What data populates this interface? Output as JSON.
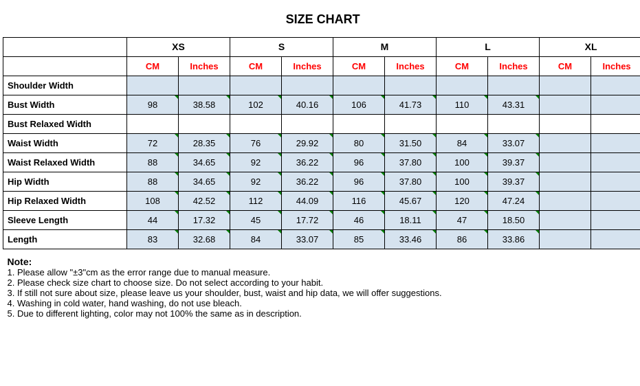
{
  "title": "SIZE CHART",
  "sizes": [
    "XS",
    "S",
    "M",
    "L",
    "XL"
  ],
  "units": {
    "cm": "CM",
    "inches": "Inches"
  },
  "measurements": [
    {
      "label": "Shoulder Width",
      "shaded": true,
      "values": [
        {
          "cm": "",
          "in": ""
        },
        {
          "cm": "",
          "in": ""
        },
        {
          "cm": "",
          "in": ""
        },
        {
          "cm": "",
          "in": ""
        },
        {
          "cm": "",
          "in": ""
        }
      ]
    },
    {
      "label": "Bust Width",
      "shaded": true,
      "values": [
        {
          "cm": "98",
          "in": "38.58"
        },
        {
          "cm": "102",
          "in": "40.16"
        },
        {
          "cm": "106",
          "in": "41.73"
        },
        {
          "cm": "110",
          "in": "43.31"
        },
        {
          "cm": "",
          "in": ""
        }
      ]
    },
    {
      "label": "Bust Relaxed Width",
      "shaded": false,
      "values": [
        {
          "cm": "",
          "in": ""
        },
        {
          "cm": "",
          "in": ""
        },
        {
          "cm": "",
          "in": ""
        },
        {
          "cm": "",
          "in": ""
        },
        {
          "cm": "",
          "in": ""
        }
      ]
    },
    {
      "label": "Waist Width",
      "shaded": true,
      "values": [
        {
          "cm": "72",
          "in": "28.35"
        },
        {
          "cm": "76",
          "in": "29.92"
        },
        {
          "cm": "80",
          "in": "31.50"
        },
        {
          "cm": "84",
          "in": "33.07"
        },
        {
          "cm": "",
          "in": ""
        }
      ]
    },
    {
      "label": "Waist Relaxed Width",
      "shaded": true,
      "values": [
        {
          "cm": "88",
          "in": "34.65"
        },
        {
          "cm": "92",
          "in": "36.22"
        },
        {
          "cm": "96",
          "in": "37.80"
        },
        {
          "cm": "100",
          "in": "39.37"
        },
        {
          "cm": "",
          "in": ""
        }
      ]
    },
    {
      "label": "Hip Width",
      "shaded": true,
      "values": [
        {
          "cm": "88",
          "in": "34.65"
        },
        {
          "cm": "92",
          "in": "36.22"
        },
        {
          "cm": "96",
          "in": "37.80"
        },
        {
          "cm": "100",
          "in": "39.37"
        },
        {
          "cm": "",
          "in": ""
        }
      ]
    },
    {
      "label": "Hip Relaxed Width",
      "shaded": true,
      "values": [
        {
          "cm": "108",
          "in": "42.52"
        },
        {
          "cm": "112",
          "in": "44.09"
        },
        {
          "cm": "116",
          "in": "45.67"
        },
        {
          "cm": "120",
          "in": "47.24"
        },
        {
          "cm": "",
          "in": ""
        }
      ]
    },
    {
      "label": "Sleeve Length",
      "shaded": true,
      "values": [
        {
          "cm": "44",
          "in": "17.32"
        },
        {
          "cm": "45",
          "in": "17.72"
        },
        {
          "cm": "46",
          "in": "18.11"
        },
        {
          "cm": "47",
          "in": "18.50"
        },
        {
          "cm": "",
          "in": ""
        }
      ]
    },
    {
      "label": "Length",
      "shaded": true,
      "values": [
        {
          "cm": "83",
          "in": "32.68"
        },
        {
          "cm": "84",
          "in": "33.07"
        },
        {
          "cm": "85",
          "in": "33.46"
        },
        {
          "cm": "86",
          "in": "33.86"
        },
        {
          "cm": "",
          "in": ""
        }
      ]
    }
  ],
  "note_header": "Note:",
  "notes": [
    "1. Please allow \"±3\"cm as the error range due to manual measure.",
    "2. Please check size chart to choose size. Do not select according to your habit.",
    "3. If still not sure about size, please leave us your shoulder, bust, waist and hip data, we will offer suggestions.",
    "4. Washing in cold water, hand washing, do not use bleach.",
    "5. Due to different lighting, color may not 100% the same as in description."
  ],
  "colors": {
    "shaded_bg": "#d6e3ef",
    "unit_text": "#ff0000",
    "border": "#000000",
    "tick": "#008000"
  }
}
